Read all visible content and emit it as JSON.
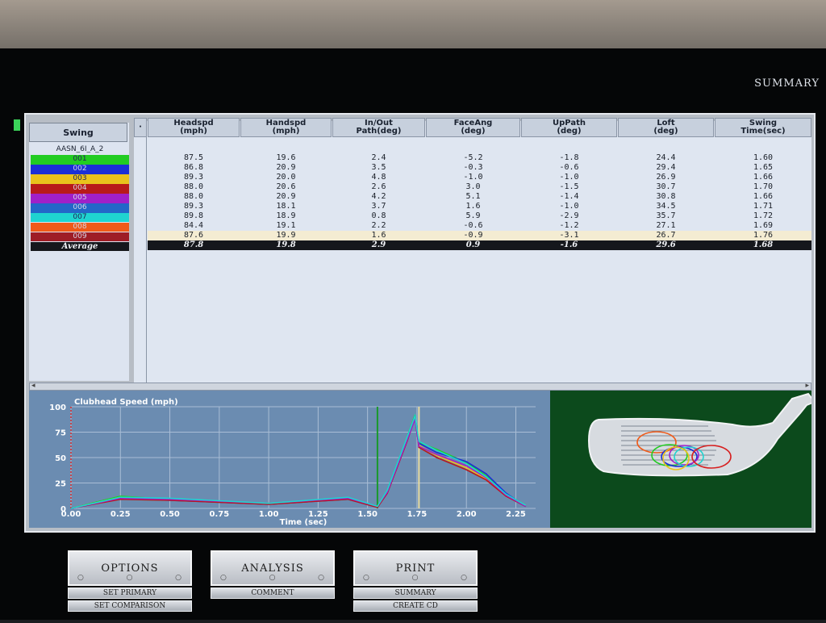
{
  "screen": {
    "title": "SUMMARY"
  },
  "table": {
    "swing_header": "Swing",
    "dot_header": "·",
    "columns": [
      {
        "label1": "Headspd",
        "label2": "(mph)"
      },
      {
        "label1": "Handspd",
        "label2": "(mph)"
      },
      {
        "label1": "In/Out",
        "label2": "Path(deg)"
      },
      {
        "label1": "FaceAng",
        "label2": "(deg)"
      },
      {
        "label1": "UpPath",
        "label2": "(deg)"
      },
      {
        "label1": "Loft",
        "label2": "(deg)"
      },
      {
        "label1": "Swing",
        "label2": "Time(sec)"
      }
    ],
    "session_label": "AASN_6I_A_2",
    "swings": [
      {
        "id": "001",
        "color": "#22cc22",
        "values": [
          "87.5",
          "19.6",
          "2.4",
          "-5.2",
          "-1.8",
          "24.4",
          "1.60"
        ]
      },
      {
        "id": "002",
        "color": "#1b2fd6",
        "values": [
          "86.8",
          "20.9",
          "3.5",
          "-0.3",
          "-0.6",
          "29.4",
          "1.65"
        ]
      },
      {
        "id": "003",
        "color": "#e9c21c",
        "values": [
          "89.3",
          "20.0",
          "4.8",
          "-1.0",
          "-1.0",
          "26.9",
          "1.66"
        ]
      },
      {
        "id": "004",
        "color": "#b81a1a",
        "values": [
          "88.0",
          "20.6",
          "2.6",
          "3.0",
          "-1.5",
          "30.7",
          "1.70"
        ]
      },
      {
        "id": "005",
        "color": "#a020c8",
        "values": [
          "88.0",
          "20.9",
          "4.2",
          "5.1",
          "-1.4",
          "30.8",
          "1.66"
        ]
      },
      {
        "id": "006",
        "color": "#2367c8",
        "values": [
          "89.3",
          "18.1",
          "3.7",
          "1.6",
          "-1.0",
          "34.5",
          "1.71"
        ]
      },
      {
        "id": "007",
        "color": "#1fd4d0",
        "values": [
          "89.8",
          "18.9",
          "0.8",
          "5.9",
          "-2.9",
          "35.7",
          "1.72"
        ]
      },
      {
        "id": "008",
        "color": "#f05a18",
        "values": [
          "84.4",
          "19.1",
          "2.2",
          "-0.6",
          "-1.2",
          "27.1",
          "1.69"
        ]
      },
      {
        "id": "009",
        "color": "#9e1d26",
        "values": [
          "87.6",
          "19.9",
          "1.6",
          "-0.9",
          "-3.1",
          "26.7",
          "1.76"
        ]
      }
    ],
    "average_label": "Average",
    "average_values": [
      "87.8",
      "19.8",
      "2.9",
      "0.9",
      "-1.6",
      "29.6",
      "1.68"
    ]
  },
  "chart_data": {
    "type": "line",
    "title": "Clubhead Speed (mph)",
    "xlabel": "Time (sec)",
    "ylabel": "",
    "xlim": [
      0,
      2.35
    ],
    "ylim": [
      0,
      100
    ],
    "xticks": [
      "0.00",
      "0.25",
      "0.50",
      "0.75",
      "1.00",
      "1.25",
      "1.50",
      "1.75",
      "2.00",
      "2.25"
    ],
    "yticks": [
      "0",
      "25",
      "50",
      "75",
      "100"
    ],
    "markers": {
      "transition_x": 1.55,
      "impact_x": 1.76
    },
    "series": [
      {
        "color": "#22cc22",
        "x": [
          0,
          0.25,
          0.5,
          1.0,
          1.4,
          1.55,
          1.6,
          1.7,
          1.74,
          1.76,
          1.85,
          2.0,
          2.1,
          2.2,
          2.3
        ],
        "y": [
          0,
          12,
          9,
          5,
          10,
          2,
          18,
          70,
          92,
          65,
          58,
          45,
          32,
          14,
          3
        ]
      },
      {
        "color": "#1b2fd6",
        "x": [
          0,
          0.25,
          0.5,
          1.0,
          1.4,
          1.55,
          1.6,
          1.7,
          1.74,
          1.76,
          1.85,
          2.0,
          2.1,
          2.2,
          2.3
        ],
        "y": [
          0,
          10,
          8,
          4,
          9,
          1,
          16,
          68,
          88,
          64,
          55,
          46,
          34,
          15,
          2
        ]
      },
      {
        "color": "#e9c21c",
        "x": [
          0,
          0.25,
          0.5,
          1.0,
          1.4,
          1.55,
          1.6,
          1.7,
          1.74,
          1.76,
          1.85,
          2.0,
          2.1,
          2.2,
          2.3
        ],
        "y": [
          0,
          11,
          9,
          5,
          10,
          2,
          17,
          69,
          90,
          62,
          52,
          40,
          29,
          13,
          3
        ]
      },
      {
        "color": "#b81a1a",
        "x": [
          0,
          0.25,
          0.5,
          1.0,
          1.4,
          1.55,
          1.6,
          1.7,
          1.74,
          1.76,
          1.85,
          2.0,
          2.1,
          2.2,
          2.3
        ],
        "y": [
          0,
          9,
          8,
          4,
          9,
          1,
          15,
          66,
          89,
          60,
          50,
          38,
          28,
          12,
          2
        ]
      },
      {
        "color": "#a020c8",
        "x": [
          0,
          0.25,
          0.5,
          1.0,
          1.4,
          1.55,
          1.6,
          1.7,
          1.74,
          1.76,
          1.85,
          2.0,
          2.1,
          2.2,
          2.3
        ],
        "y": [
          0,
          10,
          9,
          5,
          10,
          2,
          16,
          67,
          88,
          61,
          53,
          42,
          30,
          13,
          2
        ]
      },
      {
        "color": "#1fd4d0",
        "x": [
          0,
          0.25,
          0.5,
          1.0,
          1.4,
          1.55,
          1.6,
          1.7,
          1.74,
          1.76,
          1.85,
          2.0,
          2.1,
          2.2,
          2.3
        ],
        "y": [
          0,
          11,
          10,
          5,
          11,
          2,
          18,
          70,
          91,
          66,
          57,
          44,
          31,
          14,
          3
        ]
      }
    ]
  },
  "buttons": [
    {
      "label": "OPTIONS",
      "subs": [
        "SET PRIMARY",
        "SET COMPARISON"
      ]
    },
    {
      "label": "ANALYSIS",
      "subs": [
        "COMMENT"
      ]
    },
    {
      "label": "PRINT",
      "subs": [
        "SUMMARY",
        "CREATE CD"
      ]
    }
  ]
}
